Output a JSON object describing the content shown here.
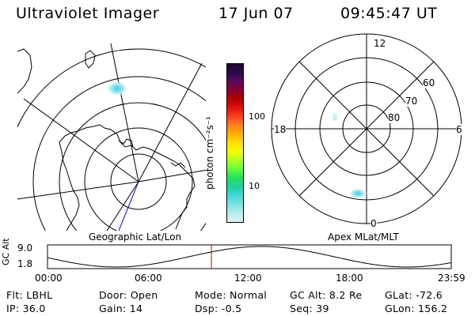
{
  "header": {
    "instrument": "Ultraviolet Imager",
    "date": "17 Jun 07",
    "time": "09:45:47 UT"
  },
  "left_panel": {
    "label": "Geographic Lat/Lon"
  },
  "right_panel": {
    "label": "Apex MLat/MLT",
    "mlt_labels": [
      "12",
      "18",
      "6",
      "0"
    ],
    "mlat_labels": [
      "60",
      "70",
      "80"
    ]
  },
  "colorbar": {
    "unit_label": "photon cm⁻²s⁻¹",
    "ticks": [
      "100",
      "10"
    ],
    "colors": [
      "#1a0a2e",
      "#2a0a4a",
      "#5a0a5a",
      "#8a0030",
      "#b00000",
      "#e01010",
      "#ff4020",
      "#ff8020",
      "#ffb000",
      "#ffe000",
      "#f0ff00",
      "#b0ff20",
      "#60ff40",
      "#20e060",
      "#20d0a0",
      "#40d8d8",
      "#80e0e0",
      "#b8ecec",
      "#e0f4f4"
    ]
  },
  "altitude_plot": {
    "ylabel": "GC Alt",
    "ytick_top": "9.0",
    "ytick_bottom": "1.8",
    "xticks": [
      "00:00",
      "06:00",
      "12:00",
      "18:00",
      "23:59"
    ],
    "current_time_fraction": 0.406
  },
  "info": {
    "flt": "Flt: LBHL",
    "ip": "IP: 36.0",
    "door": "Door: Open",
    "gain": "Gain: 14",
    "mode": "Mode: Normal",
    "dsp": "Dsp:    -0.5",
    "gcalt": "GC Alt: 8.2 Re",
    "seq": "Seq: 39",
    "glat": "GLat:  -72.6",
    "glon": "GLon: 156.2"
  }
}
